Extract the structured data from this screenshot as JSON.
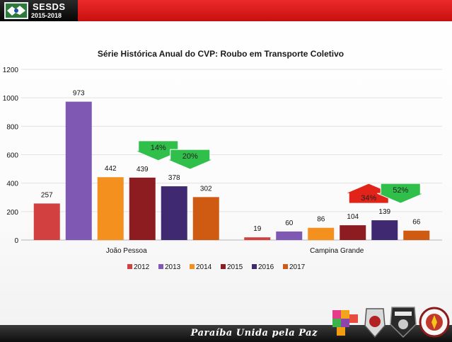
{
  "header": {
    "brand": "SESDS",
    "years": "2015-2018"
  },
  "footer": {
    "slogan": "Paraíba  Unida pela Paz"
  },
  "chart_data": {
    "type": "bar",
    "title": "Série Histórica Anual do CVP: Roubo em Transporte Coletivo",
    "categories": [
      "João Pessoa",
      "Campina Grande"
    ],
    "series": [
      {
        "name": "2012",
        "values": [
          257,
          19
        ],
        "color": "#d2403f"
      },
      {
        "name": "2013",
        "values": [
          973,
          60
        ],
        "color": "#7f58b3"
      },
      {
        "name": "2014",
        "values": [
          442,
          86
        ],
        "color": "#f4901d"
      },
      {
        "name": "2015",
        "values": [
          439,
          104
        ],
        "color": "#8c1c1f"
      },
      {
        "name": "2016",
        "values": [
          378,
          139
        ],
        "color": "#3f2a72"
      },
      {
        "name": "2017",
        "values": [
          302,
          66
        ],
        "color": "#cf5a12"
      }
    ],
    "ylim": [
      0,
      1200
    ],
    "yticks": [
      0,
      200,
      400,
      600,
      800,
      1000,
      1200
    ],
    "grid": true,
    "legend": "bottom",
    "annotations": [
      {
        "label": "14%",
        "direction": "down",
        "color": "#2fbf4a",
        "category": 0,
        "from_series": 3,
        "to_series": 4
      },
      {
        "label": "20%",
        "direction": "down",
        "color": "#2fbf4a",
        "category": 0,
        "from_series": 4,
        "to_series": 5
      },
      {
        "label": "34%",
        "direction": "up",
        "color": "#e2231a",
        "category": 1,
        "from_series": 3,
        "to_series": 4
      },
      {
        "label": "52%",
        "direction": "down",
        "color": "#2fbf4a",
        "category": 1,
        "from_series": 4,
        "to_series": 5
      }
    ]
  }
}
